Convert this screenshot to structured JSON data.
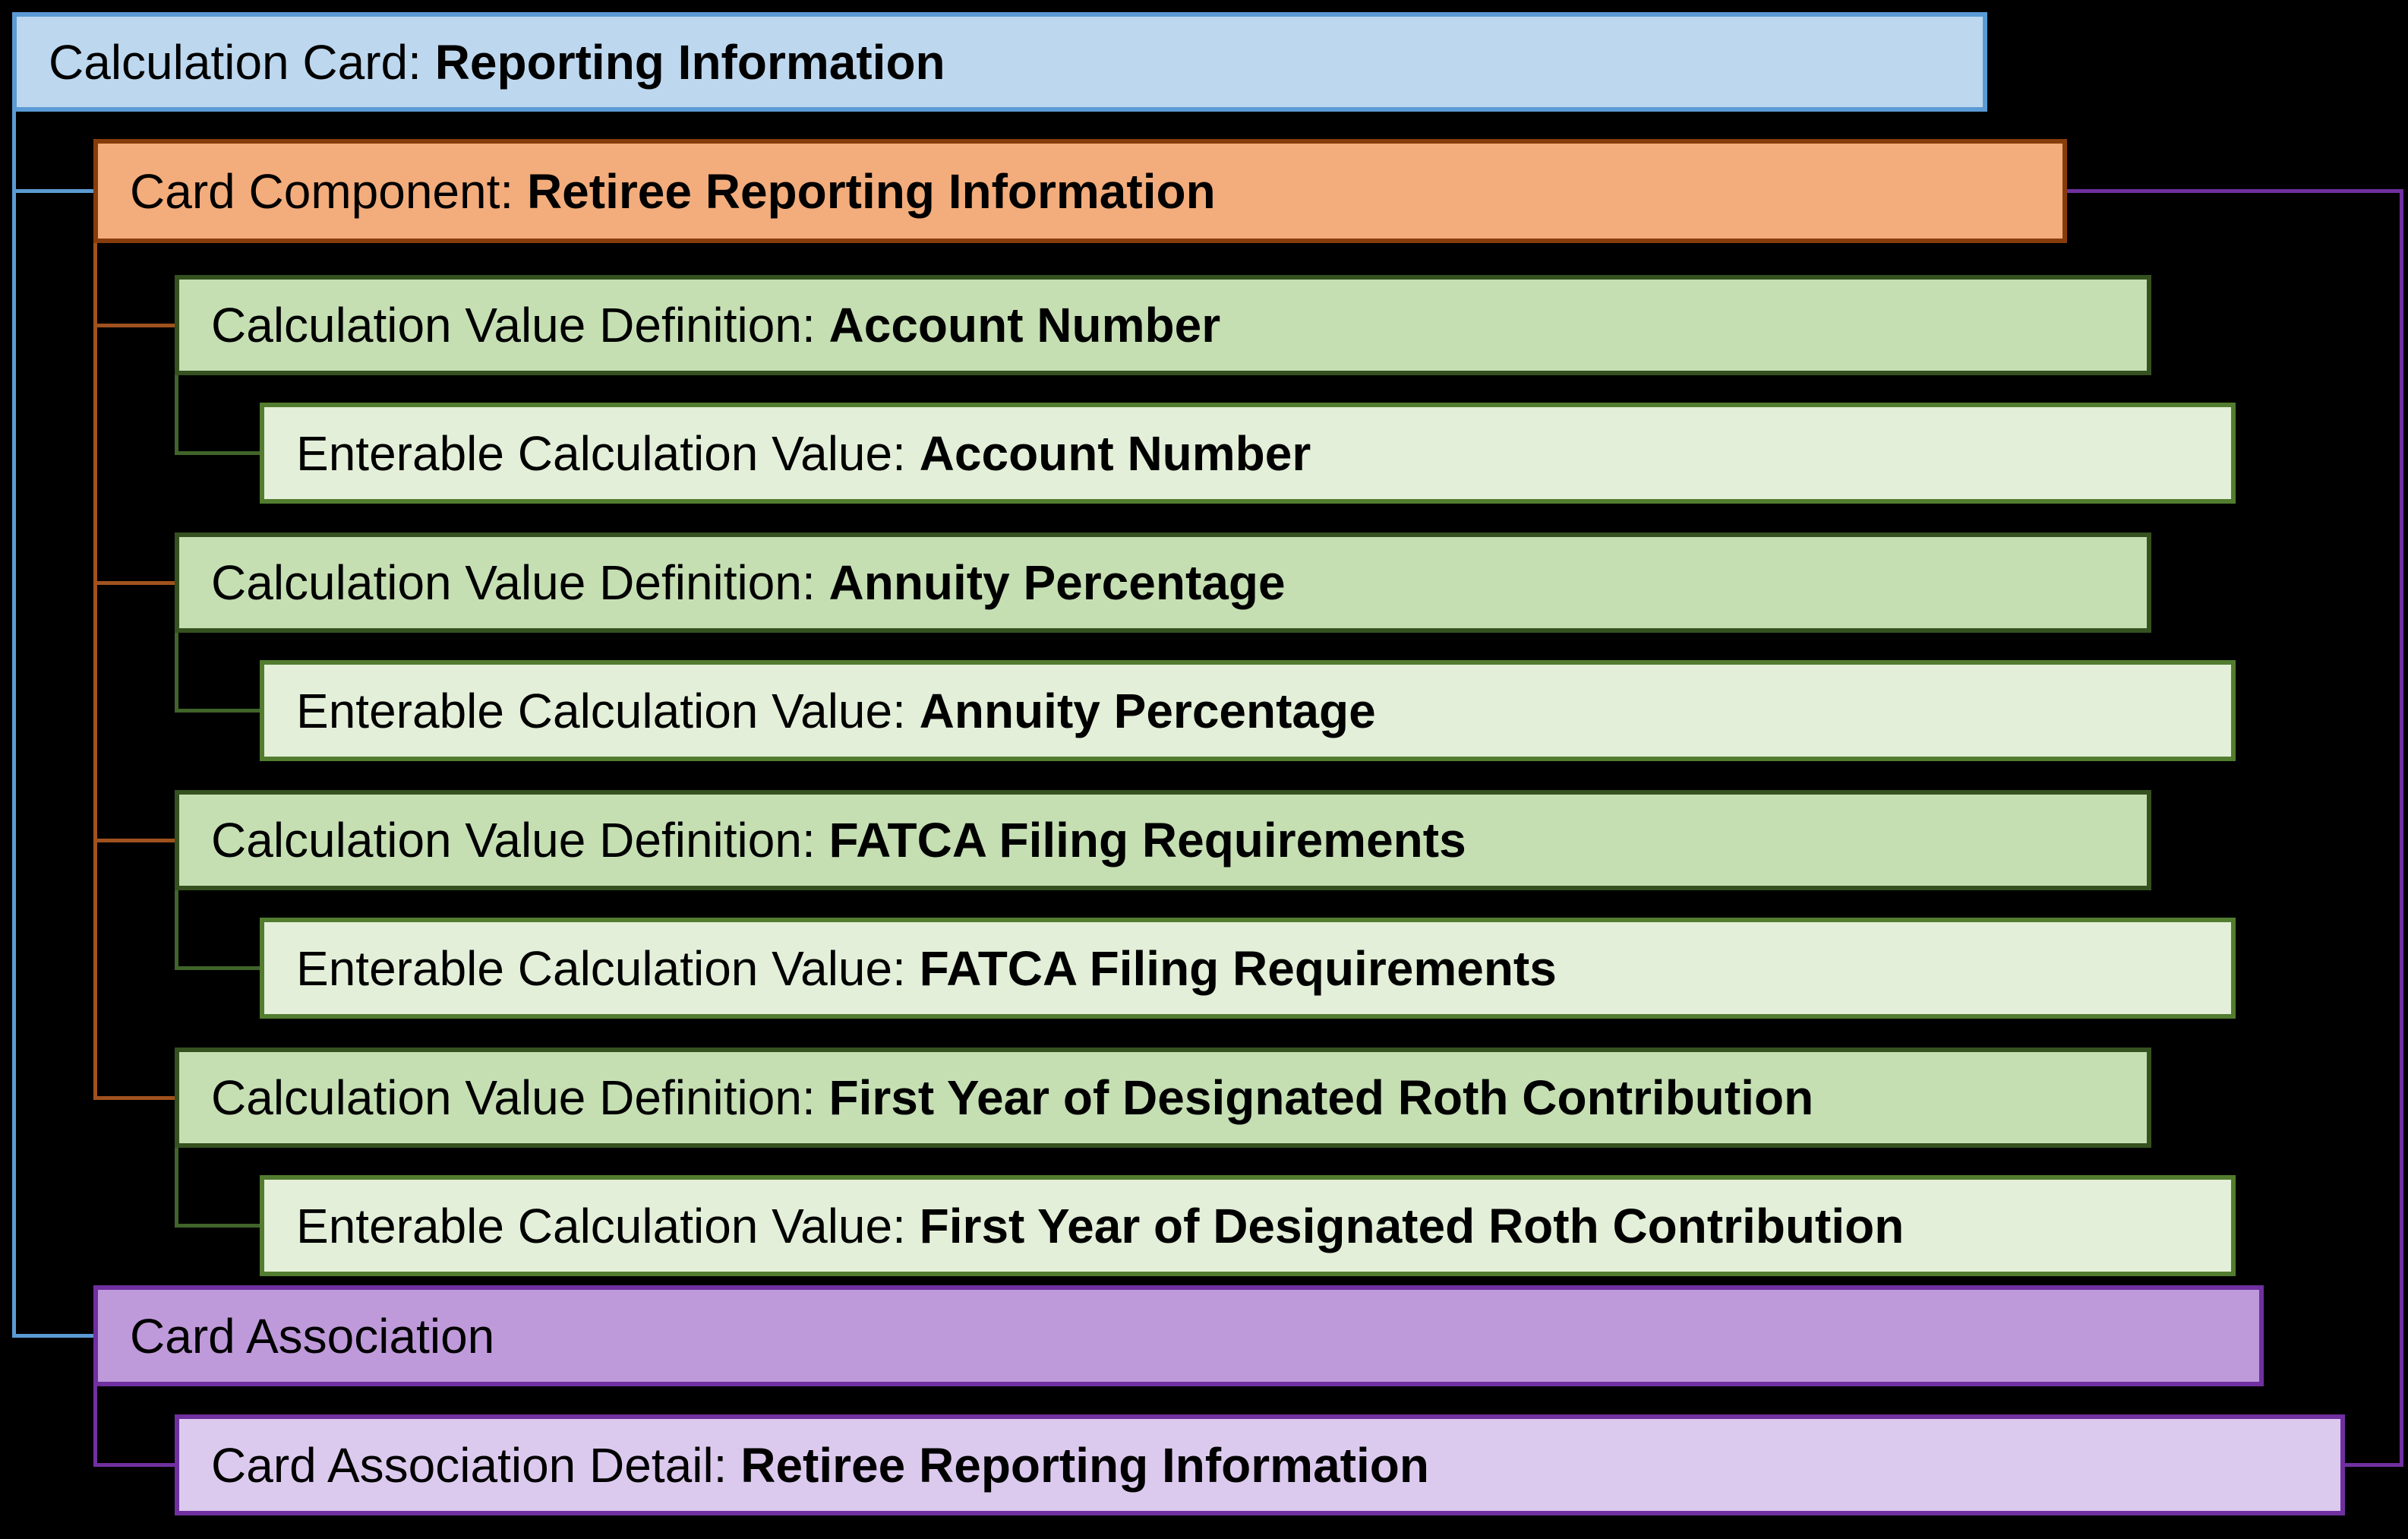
{
  "diagram_title": "Calculation Card: Reporting Information hierarchy",
  "nodes": {
    "calculation_card": {
      "prefix": "Calculation Card: ",
      "name": "Reporting Information"
    },
    "card_component": {
      "prefix": "Card Component: ",
      "name": "Retiree Reporting Information"
    },
    "cvd_account_number": {
      "prefix": "Calculation Value Definition: ",
      "name": "Account Number"
    },
    "ecv_account_number": {
      "prefix": "Enterable Calculation Value: ",
      "name": "Account Number"
    },
    "cvd_annuity_percentage": {
      "prefix": "Calculation Value Definition: ",
      "name": "Annuity Percentage"
    },
    "ecv_annuity_percentage": {
      "prefix": "Enterable Calculation Value: ",
      "name": "Annuity Percentage"
    },
    "cvd_fatca": {
      "prefix": "Calculation Value Definition: ",
      "name": "FATCA Filing Requirements"
    },
    "ecv_fatca": {
      "prefix": "Enterable Calculation Value: ",
      "name": "FATCA Filing Requirements"
    },
    "cvd_first_year_roth": {
      "prefix": "Calculation Value Definition: ",
      "name": "First Year of Designated Roth Contribution"
    },
    "ecv_first_year_roth": {
      "prefix": "Enterable Calculation Value: ",
      "name": "First Year of Designated Roth Contribution"
    },
    "card_association": {
      "prefix": "Card Association",
      "name": ""
    },
    "card_association_detail": {
      "prefix": "Card Association Detail: ",
      "name": "Retiree Reporting Information"
    }
  },
  "palette": {
    "background": "#000000",
    "text": "#000000",
    "calculation_card": {
      "fill": "#BDD7EE",
      "border": "#5B9BD5"
    },
    "card_component": {
      "fill": "#F3AC7B",
      "border": "#873C0C"
    },
    "value_definition": {
      "fill": "#C5DFB3",
      "border": "#35511F"
    },
    "enterable_value": {
      "fill": "#E3EFD8",
      "border": "#527C2F"
    },
    "card_association": {
      "fill": "#BF9ADA",
      "border": "#7030A0"
    },
    "card_association_detail": {
      "fill": "#DCCAEE",
      "border": "#7030A0"
    }
  },
  "connectors": {
    "card_to_children_blue": "#5B9BD5",
    "component_to_definitions": "#A0521E",
    "definition_to_enterable": "#40642A",
    "association_to_detail": "#7030A0",
    "component_to_detail_rightside": "#7030A0"
  }
}
